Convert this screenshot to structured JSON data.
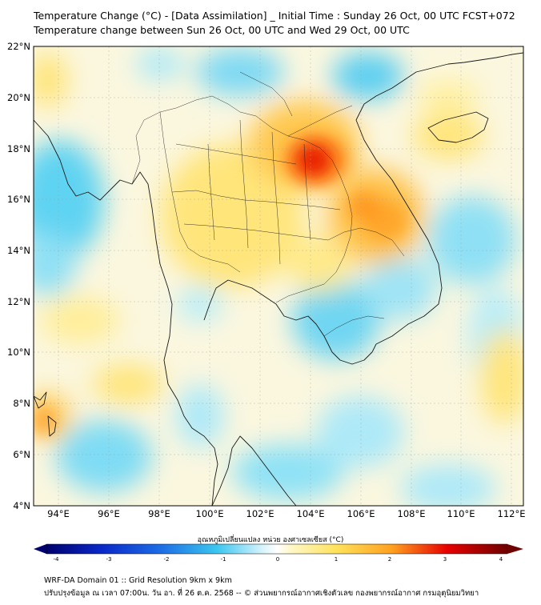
{
  "header": {
    "title_line1": "Temperature Change (°C) - [Data Assimilation] _ Initial Time : Sunday 26 Oct, 00 UTC FCST+072",
    "title_line2": "Temperature change between Sun 26 Oct, 00 UTC and Wed 29 Oct, 00 UTC"
  },
  "map": {
    "lat_labels": [
      "22°N",
      "20°N",
      "18°N",
      "16°N",
      "14°N",
      "12°N",
      "10°N",
      "8°N",
      "6°N",
      "4°N"
    ],
    "lon_labels": [
      "94°E",
      "96°E",
      "98°E",
      "100°E",
      "102°E",
      "104°E",
      "106°E",
      "108°E",
      "110°E",
      "112°E"
    ],
    "lat_range": [
      4,
      22
    ],
    "lon_range": [
      93,
      112.5
    ]
  },
  "colorbar": {
    "title": "อุณหภูมิเปลี่ยนแปลง หน่วย องศาเซลเซียส (°C)",
    "ticks": [
      "-4",
      "-3",
      "-2",
      "-1",
      "0",
      "1",
      "2",
      "3",
      "4"
    ],
    "min": -4,
    "max": 4
  },
  "footer": {
    "line1": "WRF-DA Domain 01 :: Grid Resolution 9km x 9km",
    "line2": "ปรับปรุงข้อมูล ณ เวลา 07:00น. วัน อา. ที่ 26 ต.ค. 2568 -- © ส่วนพยากรณ์อากาศเชิงตัวเลข กองพยากรณ์อากาศ กรมอุตุนิยมวิทยา"
  },
  "colors": {
    "cold_max": "#00006e",
    "cool": "#3cc6f0",
    "neutral": "#ffffff",
    "warm": "#ffd23c",
    "hot": "#e60000",
    "hot_max": "#6e0000"
  }
}
